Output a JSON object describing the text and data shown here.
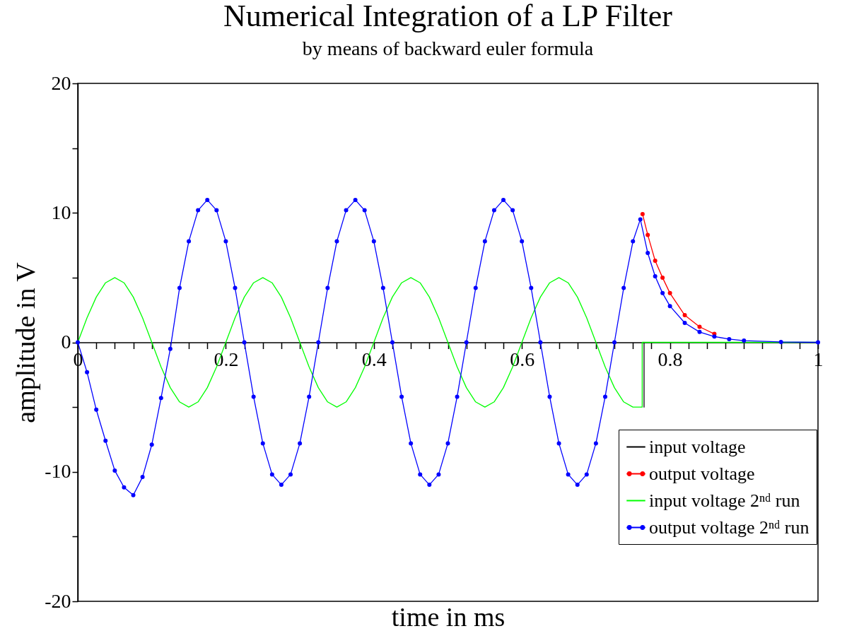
{
  "chart_data": {
    "type": "line",
    "title": "Numerical  Integration of a LP Filter",
    "subtitle": "by means of backward euler formula",
    "xlabel": "time in ms",
    "ylabel": "amplitude in V",
    "xlim": [
      0,
      1
    ],
    "ylim": [
      -20,
      20
    ],
    "xticks": [
      0,
      {
        "value": 0.025,
        "label": null
      },
      {
        "value": 0.05,
        "label": null
      },
      {
        "value": 0.075,
        "label": null
      },
      {
        "value": 0.1,
        "label": null
      },
      {
        "value": 0.125,
        "label": null
      },
      {
        "value": 0.15,
        "label": null
      },
      {
        "value": 0.175,
        "label": null
      },
      0.2,
      {
        "value": 0.225,
        "label": null
      },
      {
        "value": 0.25,
        "label": null
      },
      {
        "value": 0.275,
        "label": null
      },
      {
        "value": 0.3,
        "label": null
      },
      {
        "value": 0.325,
        "label": null
      },
      {
        "value": 0.35,
        "label": null
      },
      {
        "value": 0.375,
        "label": null
      },
      0.4,
      {
        "value": 0.425,
        "label": null
      },
      {
        "value": 0.45,
        "label": null
      },
      {
        "value": 0.475,
        "label": null
      },
      {
        "value": 0.5,
        "label": null
      },
      {
        "value": 0.525,
        "label": null
      },
      {
        "value": 0.55,
        "label": null
      },
      {
        "value": 0.575,
        "label": null
      },
      0.6,
      {
        "value": 0.625,
        "label": null
      },
      {
        "value": 0.65,
        "label": null
      },
      {
        "value": 0.675,
        "label": null
      },
      {
        "value": 0.7,
        "label": null
      },
      {
        "value": 0.725,
        "label": null
      },
      {
        "value": 0.75,
        "label": null
      },
      {
        "value": 0.775,
        "label": null
      },
      0.8,
      {
        "value": 0.825,
        "label": null
      },
      {
        "value": 0.85,
        "label": null
      },
      {
        "value": 0.875,
        "label": null
      },
      {
        "value": 0.9,
        "label": null
      },
      {
        "value": 0.925,
        "label": null
      },
      {
        "value": 0.95,
        "label": null
      },
      {
        "value": 0.975,
        "label": null
      },
      1
    ],
    "yticks": [
      -20,
      {
        "value": -15,
        "label": null
      },
      -10,
      {
        "value": -5,
        "label": null
      },
      0,
      {
        "value": 5,
        "label": null
      },
      10,
      {
        "value": 15,
        "label": null
      },
      20
    ],
    "legend": "bottom right",
    "series": [
      {
        "name": "input voltage",
        "color": "#000000",
        "marker": "none",
        "x": [
          0.765,
          0.765
        ],
        "values": [
          -5,
          0
        ]
      },
      {
        "name": "output voltage",
        "color": "#ff0000",
        "marker": "circle",
        "x": [
          0.763,
          0.77,
          0.78,
          0.79,
          0.8,
          0.82,
          0.84,
          0.86
        ],
        "values": [
          9.9,
          8.3,
          6.3,
          5,
          3.8,
          2.1,
          1.2,
          0.65
        ]
      },
      {
        "name": "input voltage 2ⁿᵈ run",
        "color": "#00ff00",
        "marker": "none",
        "x": [
          0,
          0.0125,
          0.025,
          0.0375,
          0.05,
          0.0625,
          0.075,
          0.0875,
          0.1,
          0.1125,
          0.125,
          0.1375,
          0.15,
          0.1625,
          0.175,
          0.1875,
          0.2,
          0.2125,
          0.225,
          0.2375,
          0.25,
          0.2625,
          0.275,
          0.2875,
          0.3,
          0.3125,
          0.325,
          0.3375,
          0.35,
          0.3625,
          0.375,
          0.3875,
          0.4,
          0.4125,
          0.425,
          0.4375,
          0.45,
          0.4625,
          0.475,
          0.4875,
          0.5,
          0.5125,
          0.525,
          0.5375,
          0.55,
          0.5625,
          0.575,
          0.5875,
          0.6,
          0.6125,
          0.625,
          0.6375,
          0.65,
          0.6625,
          0.675,
          0.6875,
          0.7,
          0.7125,
          0.725,
          0.7375,
          0.75,
          0.7625,
          0.7625,
          1
        ],
        "values": [
          0,
          1.9,
          3.5,
          4.6,
          5,
          4.6,
          3.5,
          1.9,
          0,
          -1.9,
          -3.5,
          -4.6,
          -5,
          -4.6,
          -3.5,
          -1.9,
          0,
          1.9,
          3.5,
          4.6,
          5,
          4.6,
          3.5,
          1.9,
          0,
          -1.9,
          -3.5,
          -4.6,
          -5,
          -4.6,
          -3.5,
          -1.9,
          0,
          1.9,
          3.5,
          4.6,
          5,
          4.6,
          3.5,
          1.9,
          0,
          -1.9,
          -3.5,
          -4.6,
          -5,
          -4.6,
          -3.5,
          -1.9,
          0,
          1.9,
          3.5,
          4.6,
          5,
          4.6,
          3.5,
          1.9,
          0,
          -1.9,
          -3.5,
          -4.6,
          -5,
          -5,
          0,
          0
        ]
      },
      {
        "name": "output voltage 2ⁿᵈ run",
        "color": "#0000ff",
        "marker": "circle",
        "x": [
          0,
          0.0125,
          0.025,
          0.0375,
          0.05,
          0.0625,
          0.075,
          0.0875,
          0.1,
          0.1125,
          0.125,
          0.1375,
          0.15,
          0.1625,
          0.175,
          0.1875,
          0.2,
          0.2125,
          0.225,
          0.2375,
          0.25,
          0.2625,
          0.275,
          0.2875,
          0.3,
          0.3125,
          0.325,
          0.3375,
          0.35,
          0.3625,
          0.375,
          0.3875,
          0.4,
          0.4125,
          0.425,
          0.4375,
          0.45,
          0.4625,
          0.475,
          0.4875,
          0.5,
          0.5125,
          0.525,
          0.5375,
          0.55,
          0.5625,
          0.575,
          0.5875,
          0.6,
          0.6125,
          0.625,
          0.6375,
          0.65,
          0.6625,
          0.675,
          0.6875,
          0.7,
          0.7125,
          0.725,
          0.7375,
          0.75,
          0.76,
          0.77,
          0.78,
          0.79,
          0.8,
          0.82,
          0.84,
          0.86,
          0.88,
          0.9,
          0.95,
          1
        ],
        "values": [
          0,
          -2.3,
          -5.2,
          -7.6,
          -9.9,
          -11.2,
          -11.8,
          -10.4,
          -7.9,
          -4.3,
          -0.5,
          4.2,
          7.8,
          10.2,
          11,
          10.2,
          7.8,
          4.2,
          0,
          -4.2,
          -7.8,
          -10.2,
          -11,
          -10.2,
          -7.8,
          -4.2,
          0,
          4.2,
          7.8,
          10.2,
          11,
          10.2,
          7.8,
          4.2,
          0,
          -4.2,
          -7.8,
          -10.2,
          -11,
          -10.2,
          -7.8,
          -4.2,
          0,
          4.2,
          7.8,
          10.2,
          11,
          10.2,
          7.8,
          4.2,
          0,
          -4.2,
          -7.8,
          -10.2,
          -11,
          -10.2,
          -7.8,
          -4.2,
          0,
          4.2,
          7.8,
          9.5,
          6.9,
          5.1,
          3.8,
          2.8,
          1.5,
          0.8,
          0.45,
          0.25,
          0.13,
          0.03,
          0
        ]
      }
    ]
  }
}
